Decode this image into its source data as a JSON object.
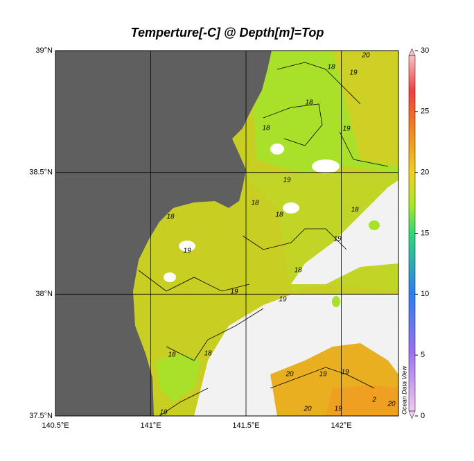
{
  "map": {
    "title": "Temperture[-C] @ Depth[m]=Top",
    "lonlim": [
      140.5,
      142.3
    ],
    "latlim": [
      37.5,
      39
    ],
    "lon_ticks": [
      {
        "value": 140.5,
        "label": "140.5°E"
      },
      {
        "value": 141,
        "label": "141°E"
      },
      {
        "value": 141.5,
        "label": "141.5°E"
      },
      {
        "value": 142,
        "label": "142°E"
      }
    ],
    "lat_ticks": [
      {
        "value": 37.5,
        "label": "37.5°N"
      },
      {
        "value": 38,
        "label": "38°N"
      },
      {
        "value": 38.5,
        "label": "38.5°N"
      },
      {
        "value": 39,
        "label": "39°N"
      }
    ],
    "colorbar": {
      "range": [
        0,
        30
      ],
      "ticks": [
        0,
        5,
        10,
        15,
        20,
        25,
        30
      ]
    },
    "contour_labels": [
      18,
      19,
      20,
      18,
      18,
      19,
      19,
      18,
      18,
      18,
      19,
      18,
      19,
      19,
      18,
      19,
      18,
      18,
      20,
      19,
      19,
      20,
      19,
      2,
      20,
      19
    ],
    "credit": "Ocean Data View"
  }
}
